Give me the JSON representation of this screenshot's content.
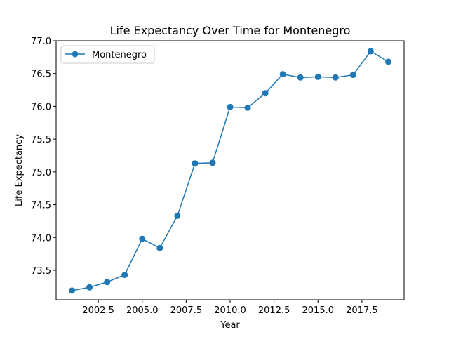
{
  "chart_data": {
    "type": "line",
    "title": "Life Expectancy Over Time for Montenegro",
    "xlabel": "Year",
    "ylabel": "Life Expectancy",
    "xlim": [
      2000.1,
      2019.9
    ],
    "ylim": [
      73.05,
      77.0
    ],
    "xticks": [
      2002.5,
      2005.0,
      2007.5,
      2010.0,
      2012.5,
      2015.0,
      2017.5
    ],
    "xtick_labels": [
      "2002.5",
      "2005.0",
      "2007.5",
      "2010.0",
      "2012.5",
      "2015.0",
      "2017.5"
    ],
    "yticks": [
      73.5,
      74.0,
      74.5,
      75.0,
      75.5,
      76.0,
      76.5,
      77.0
    ],
    "ytick_labels": [
      "73.5",
      "74.0",
      "74.5",
      "75.0",
      "75.5",
      "76.0",
      "76.5",
      "77.0"
    ],
    "grid": false,
    "legend_position": "top-left",
    "series": [
      {
        "name": "Montenegro",
        "color": "#1f77b4",
        "marker": "circle",
        "x": [
          2001,
          2002,
          2003,
          2004,
          2005,
          2006,
          2007,
          2008,
          2009,
          2010,
          2011,
          2012,
          2013,
          2014,
          2015,
          2016,
          2017,
          2018,
          2019
        ],
        "y": [
          73.19,
          73.24,
          73.32,
          73.43,
          73.98,
          73.84,
          74.33,
          75.13,
          75.14,
          75.99,
          75.98,
          76.2,
          76.49,
          76.44,
          76.45,
          76.44,
          76.48,
          76.84,
          76.68
        ]
      }
    ]
  }
}
